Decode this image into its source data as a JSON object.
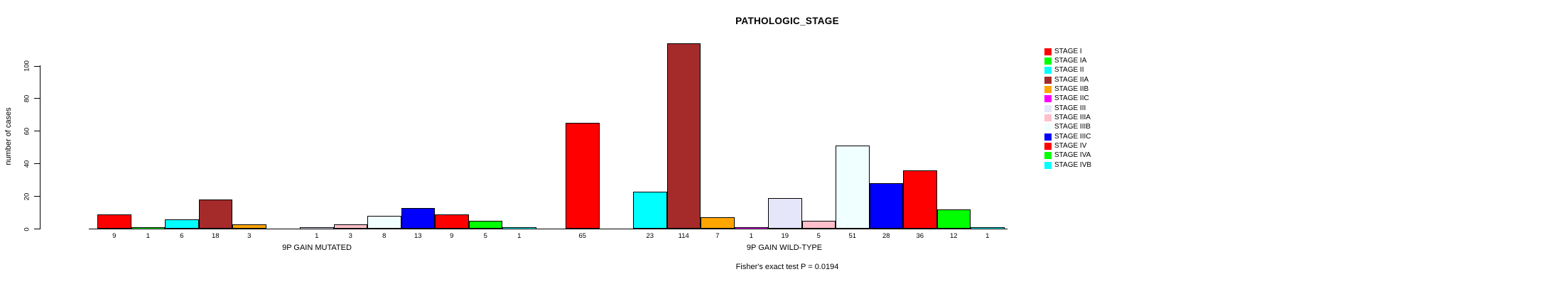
{
  "chart_data": {
    "type": "bar",
    "title": "PATHOLOGIC_STAGE",
    "subtitle": "Fisher's exact test P = 0.0194",
    "ylabel": "number of cases",
    "ylim": [
      0,
      115
    ],
    "yticks": [
      0,
      20,
      40,
      60,
      80,
      100
    ],
    "grid": false,
    "legend_position": "right",
    "categories": [
      "STAGE I",
      "STAGE IA",
      "STAGE II",
      "STAGE IIA",
      "STAGE IIB",
      "STAGE IIC",
      "STAGE III",
      "STAGE IIIA",
      "STAGE IIIB",
      "STAGE IIIC",
      "STAGE IV",
      "STAGE IVA",
      "STAGE IVB"
    ],
    "colors": [
      "#FF0000",
      "#00FF00",
      "#00FFFF",
      "#A52A2A",
      "#FFA500",
      "#FF00FF",
      "#E6E6FA",
      "#FFC0CB",
      "#F0FFFF",
      "#0000FF",
      "#FF0000",
      "#00FF00",
      "#00FFFF"
    ],
    "groups": [
      {
        "label": "9P GAIN MUTATED",
        "values": [
          9,
          1,
          6,
          18,
          3,
          0,
          1,
          3,
          8,
          13,
          9,
          5,
          1
        ]
      },
      {
        "label": "9P GAIN WILD-TYPE",
        "values": [
          65,
          0,
          23,
          114,
          7,
          1,
          19,
          5,
          51,
          28,
          36,
          12,
          1
        ]
      }
    ],
    "legend": [
      {
        "label": "STAGE I",
        "color": "#FF0000"
      },
      {
        "label": "STAGE IA",
        "color": "#00FF00"
      },
      {
        "label": "STAGE II",
        "color": "#00FFFF"
      },
      {
        "label": "STAGE IIA",
        "color": "#A52A2A"
      },
      {
        "label": "STAGE IIB",
        "color": "#FFA500"
      },
      {
        "label": "STAGE IIC",
        "color": "#FF00FF"
      },
      {
        "label": "STAGE III",
        "color": "#E6E6FA"
      },
      {
        "label": "STAGE IIIA",
        "color": "#FFC0CB"
      },
      {
        "label": "STAGE IIIB",
        "color": "#F0FFFF"
      },
      {
        "label": "STAGE IIIC",
        "color": "#0000FF"
      },
      {
        "label": "STAGE IV",
        "color": "#FF0000"
      },
      {
        "label": "STAGE IVA",
        "color": "#00FF00"
      },
      {
        "label": "STAGE IVB",
        "color": "#00FFFF"
      }
    ]
  }
}
